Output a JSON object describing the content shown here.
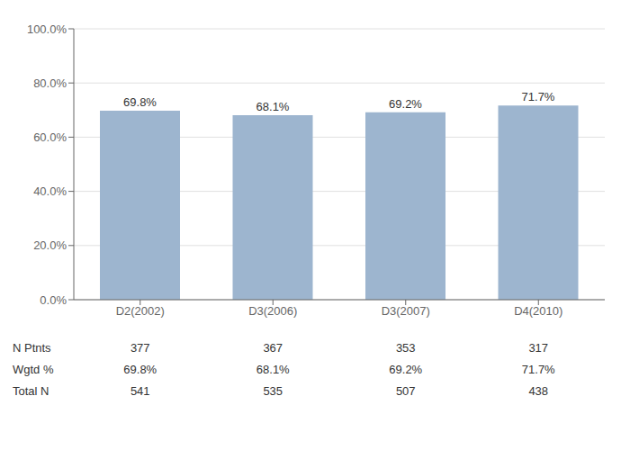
{
  "chart_data": {
    "type": "bar",
    "categories": [
      "D2(2002)",
      "D3(2006)",
      "D3(2007)",
      "D4(2010)"
    ],
    "values": [
      69.8,
      68.1,
      69.2,
      71.7
    ],
    "value_labels": [
      "69.8%",
      "68.1%",
      "69.2%",
      "71.7%"
    ],
    "data_labels": true,
    "color": "#9db5cf",
    "ylim": [
      0,
      100
    ],
    "yticks": [
      {
        "value": 0,
        "label": "0.0%"
      },
      {
        "value": 20,
        "label": "20.0%"
      },
      {
        "value": 40,
        "label": "40.0%"
      },
      {
        "value": 60,
        "label": "60.0%"
      },
      {
        "value": 80,
        "label": "80.0%"
      },
      {
        "value": 100,
        "label": "100.0%"
      }
    ],
    "grid": true,
    "table": {
      "row_labels": [
        "N Ptnts",
        "Wgtd %",
        "Total N"
      ],
      "rows": [
        [
          377,
          367,
          353,
          317
        ],
        [
          "69.8%",
          "68.1%",
          "69.2%",
          "71.7%"
        ],
        [
          541,
          535,
          507,
          438
        ]
      ]
    }
  }
}
